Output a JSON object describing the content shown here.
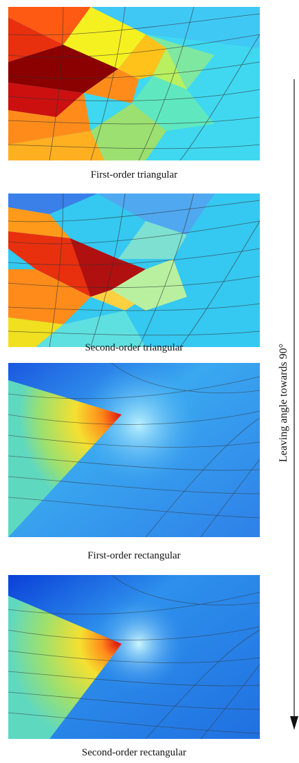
{
  "panels": [
    {
      "id": "p1",
      "caption": "First-order triangular"
    },
    {
      "id": "p2",
      "caption": "Second-order triangular"
    },
    {
      "id": "p3",
      "caption": "First-order rectangular"
    },
    {
      "id": "p4",
      "caption": "Second-order rectangular"
    }
  ],
  "side_label": "Leaving angle towards 90°",
  "colors": {
    "dark_red": "#8b0000",
    "red": "#e31a1c",
    "orange": "#ff8c1a",
    "yellow": "#f5f020",
    "green": "#9be070",
    "cyan": "#3fd8f0",
    "light_blue": "#3aa8f0",
    "blue": "#1060e0",
    "mesh_line": "#333333"
  }
}
